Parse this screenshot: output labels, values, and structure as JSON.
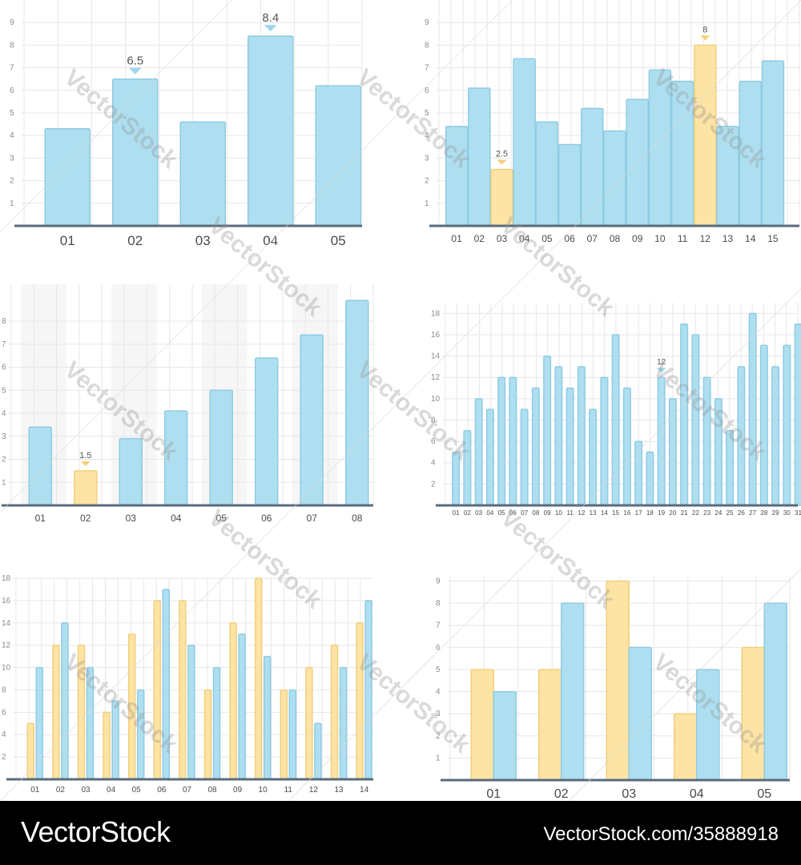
{
  "colors": {
    "blue": "#aedff0",
    "blue_stroke": "#8fcbe3",
    "yellow": "#fde4a4",
    "yellow_stroke": "#f1cf7e",
    "marker_blue": "#9fd6ee",
    "marker_yellow": "#f6cf74",
    "baseline": "#5a6b7b",
    "shaded_column": "#f6f6f6"
  },
  "watermark": "VectorStock",
  "footer": {
    "brand": "VectorStock",
    "url": "VectorStock.com/35888918"
  },
  "chart_data": [
    {
      "type": "bar",
      "categories": [
        "01",
        "02",
        "03",
        "04",
        "05"
      ],
      "series": [
        {
          "values": [
            4.3,
            6.5,
            4.6,
            8.4,
            6.2
          ],
          "highlight": [],
          "labeled": [
            1,
            3
          ]
        }
      ],
      "data_labels": [
        "6.5",
        "8.4"
      ],
      "yticks": [
        "1",
        "2",
        "3",
        "4",
        "5",
        "6",
        "7",
        "8",
        "9"
      ],
      "ylim": [
        0,
        10
      ],
      "grid": true
    },
    {
      "type": "bar",
      "categories": [
        "01",
        "02",
        "03",
        "04",
        "05",
        "06",
        "07",
        "08",
        "09",
        "10",
        "11",
        "12",
        "13",
        "14",
        "15"
      ],
      "series": [
        {
          "values": [
            4.4,
            6.1,
            2.5,
            7.4,
            4.6,
            3.6,
            5.2,
            4.2,
            5.6,
            6.9,
            6.4,
            8,
            4.4,
            6.4,
            7.3
          ],
          "highlight": [
            2,
            11
          ],
          "labeled": [
            2,
            11
          ]
        }
      ],
      "data_labels": [
        "2.5",
        "8"
      ],
      "yticks": [
        "1",
        "2",
        "3",
        "4",
        "5",
        "6",
        "7",
        "8",
        "9"
      ],
      "ylim": [
        0,
        10
      ],
      "grid": true
    },
    {
      "type": "bar",
      "categories": [
        "01",
        "02",
        "03",
        "04",
        "05",
        "06",
        "07",
        "08"
      ],
      "series": [
        {
          "values": [
            3.4,
            1.5,
            2.9,
            4.1,
            5,
            6.4,
            7.4,
            8.9
          ],
          "highlight": [
            1
          ],
          "labeled": [
            1
          ]
        }
      ],
      "data_labels": [
        "1.5"
      ],
      "yticks": [
        "1",
        "2",
        "3",
        "4",
        "5",
        "6",
        "7",
        "8"
      ],
      "ylim": [
        0,
        9.6
      ],
      "grid": true
    },
    {
      "type": "bar",
      "categories": [
        "01",
        "02",
        "03",
        "04",
        "05",
        "06",
        "07",
        "08",
        "09",
        "10",
        "11",
        "12",
        "13",
        "14",
        "15",
        "16",
        "17",
        "18",
        "19",
        "20",
        "21",
        "22",
        "23",
        "24",
        "25",
        "26",
        "27",
        "28",
        "29",
        "30",
        "31"
      ],
      "series": [
        {
          "values": [
            5,
            7,
            10,
            9,
            12,
            12,
            9,
            11,
            14,
            13,
            11,
            13,
            9,
            12,
            16,
            11,
            6,
            5,
            12,
            10,
            17,
            16,
            12,
            10,
            7,
            13,
            18,
            15,
            13,
            15,
            17
          ],
          "highlight": [],
          "labeled": [
            18
          ]
        }
      ],
      "data_labels": [
        "12"
      ],
      "yticks": [
        "2",
        "4",
        "6",
        "8",
        "10",
        "12",
        "14",
        "16",
        "18"
      ],
      "ylim": [
        0,
        19
      ],
      "grid": true
    },
    {
      "type": "bar",
      "categories": [
        "01",
        "02",
        "03",
        "04",
        "05",
        "06",
        "07",
        "08",
        "09",
        "10",
        "11",
        "12",
        "13",
        "14"
      ],
      "series": [
        {
          "color": "yellow",
          "values": [
            5,
            12,
            12,
            6,
            13,
            16,
            16,
            8,
            14,
            18,
            8,
            10,
            12,
            14
          ]
        },
        {
          "color": "blue",
          "values": [
            10,
            14,
            10,
            7,
            8,
            17,
            12,
            10,
            13,
            11,
            8,
            5,
            10,
            16
          ]
        }
      ],
      "yticks": [
        "2",
        "4",
        "6",
        "8",
        "10",
        "12",
        "14",
        "16",
        "18"
      ],
      "ylim": [
        0,
        18
      ],
      "grid": true
    },
    {
      "type": "bar",
      "categories": [
        "01",
        "02",
        "03",
        "04",
        "05"
      ],
      "series": [
        {
          "color": "yellow",
          "values": [
            5,
            5,
            9,
            3,
            6
          ]
        },
        {
          "color": "blue",
          "values": [
            4,
            8,
            6,
            5,
            8
          ]
        }
      ],
      "yticks": [
        "1",
        "2",
        "3",
        "4",
        "5",
        "6",
        "7",
        "8",
        "9"
      ],
      "ylim": [
        0,
        9.2
      ],
      "grid": true
    }
  ]
}
